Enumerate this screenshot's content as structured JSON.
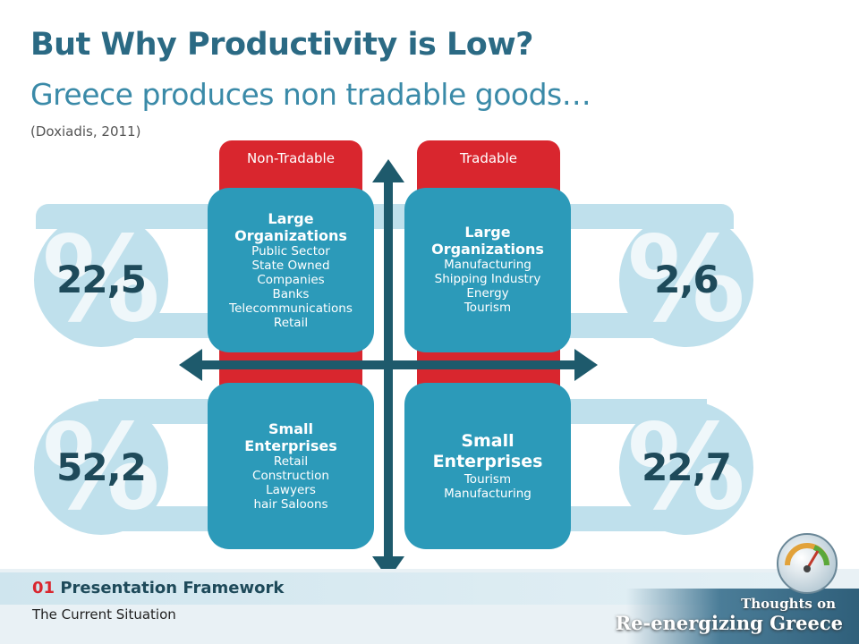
{
  "slide": {
    "title": "But Why Productivity is Low?",
    "subtitle": "Greece produces non tradable goods…",
    "source": "(Doxiadis, 2011)"
  },
  "columns": {
    "non_tradable": "Non-Tradable",
    "tradable": "Tradable"
  },
  "percent_symbol": "%",
  "stats": {
    "top_left": "22,5",
    "top_right": "2,6",
    "bottom_left": "52,2",
    "bottom_right": "22,7"
  },
  "quadrants": {
    "nt_large": {
      "heading_1": "Large",
      "heading_2": "Organizations",
      "items": [
        "Public Sector",
        "State Owned",
        "Companies",
        "Banks",
        "Telecommunications",
        "Retail"
      ]
    },
    "t_large": {
      "heading_1": "Large",
      "heading_2": "Organizations",
      "items": [
        "Manufacturing",
        "Shipping  Industry",
        "Energy",
        "Tourism"
      ]
    },
    "nt_small": {
      "heading_1": "Small",
      "heading_2": "Enterprises",
      "items": [
        "Retail",
        "Construction",
        "Lawyers",
        "hair Saloons"
      ]
    },
    "t_small": {
      "heading_1": "Small",
      "heading_2": "Enterprises",
      "items": [
        "Tourism",
        "Manufacturing"
      ]
    }
  },
  "footer": {
    "section_number": "01",
    "section_title": "Presentation  Framework",
    "subsection": "The Current Situation"
  },
  "brand": {
    "line1": "Thoughts on",
    "line2": "Re-energizing Greece"
  },
  "colors": {
    "accent_red": "#d9262e",
    "box_teal": "#2c9ab9",
    "band_light": "#bfe0ec",
    "arrow_dark": "#1e5a6c",
    "title_blue": "#2b6a84"
  }
}
